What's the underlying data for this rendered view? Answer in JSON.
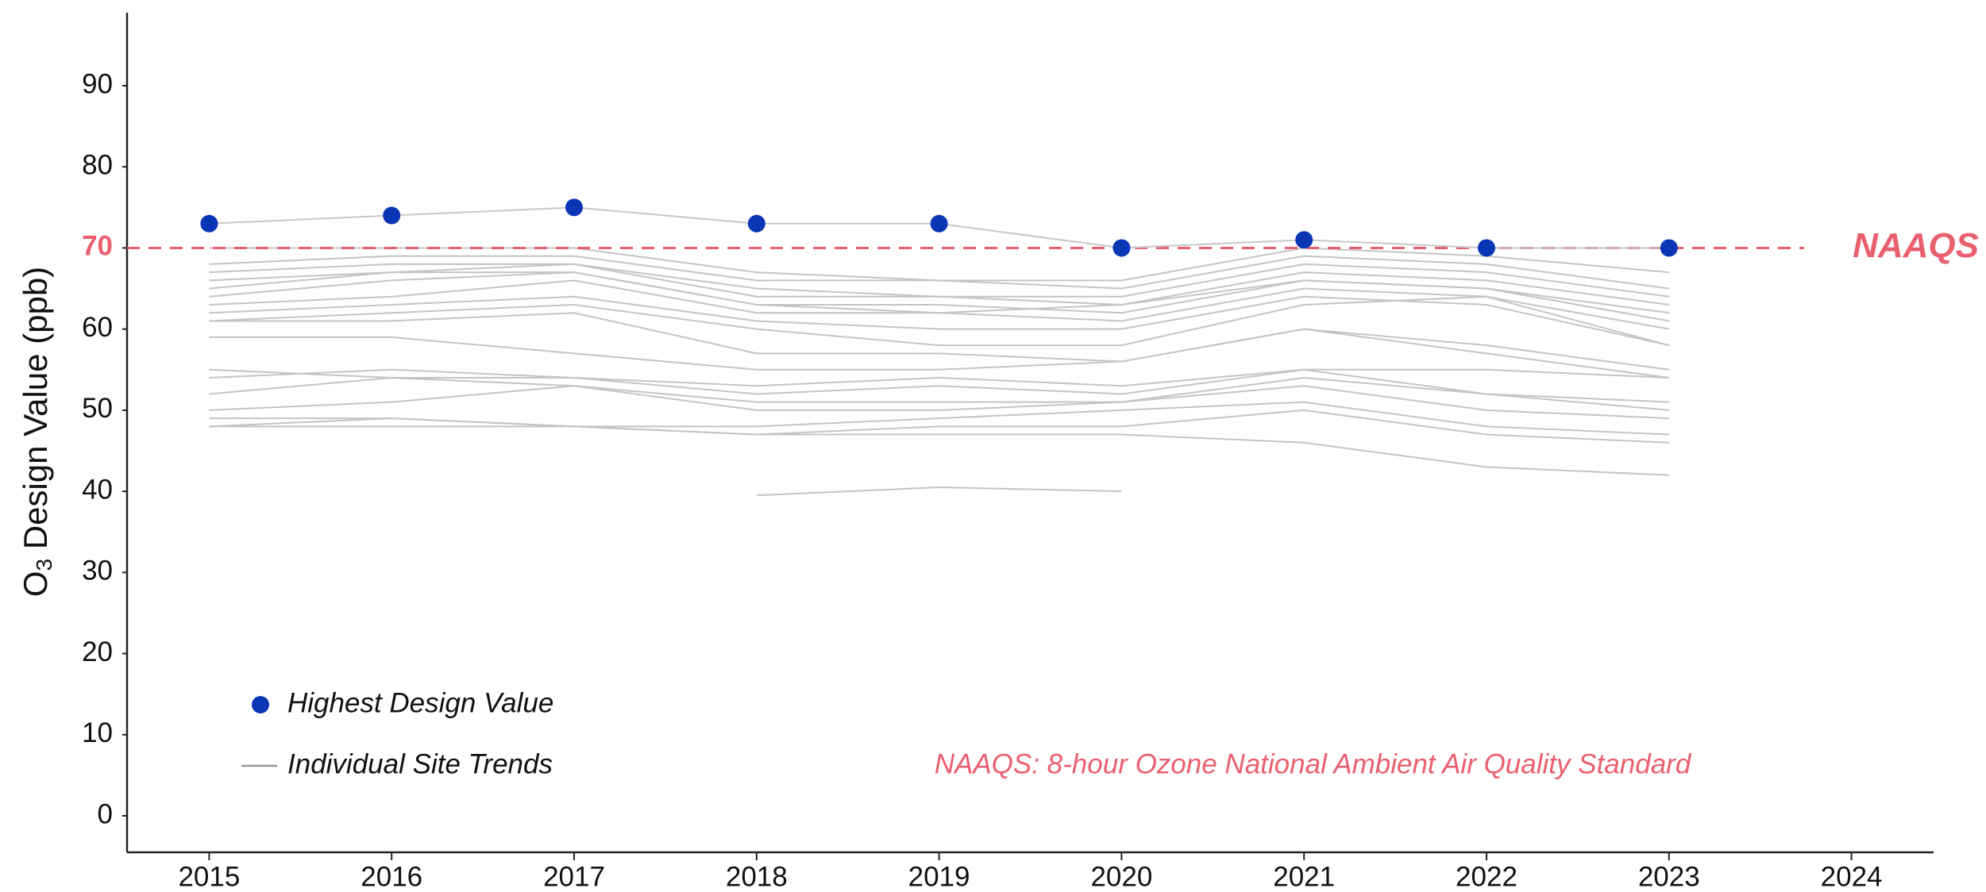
{
  "chart_data": {
    "type": "line",
    "ylabel": {
      "main": "O",
      "sub": "3",
      "rest": " Design Value (ppb)"
    },
    "x": [
      2015,
      2016,
      2017,
      2018,
      2019,
      2020,
      2021,
      2022,
      2023
    ],
    "xlim": [
      2014.55,
      2024.45
    ],
    "xticks": [
      2015,
      2016,
      2017,
      2018,
      2019,
      2020,
      2021,
      2022,
      2023,
      2024
    ],
    "ylim": [
      -4.5,
      99
    ],
    "yticks": [
      0,
      10,
      20,
      30,
      40,
      50,
      60,
      70,
      80,
      90
    ],
    "grid": false,
    "legend": "bottom-left",
    "series": [
      {
        "name": "Highest Design Value",
        "color": "#0a35b5",
        "line_color": "#c8c8c8",
        "values": [
          73,
          74,
          75,
          73,
          73,
          70,
          71,
          70,
          70
        ]
      }
    ],
    "site_trends": {
      "name": "Individual Site Trends",
      "color": "#c4c4c4",
      "lines": [
        [
          70,
          70,
          70,
          67,
          66,
          66,
          70,
          69,
          67
        ],
        [
          68,
          69,
          69,
          66,
          66,
          65,
          69,
          68,
          65
        ],
        [
          67,
          68,
          68,
          65,
          64,
          64,
          68,
          67,
          64
        ],
        [
          66,
          67,
          68,
          64,
          64,
          63,
          67,
          66,
          63
        ],
        [
          65,
          67,
          67,
          63,
          63,
          62,
          66,
          65,
          62
        ],
        [
          64,
          66,
          67,
          63,
          62,
          63,
          66,
          65,
          61
        ],
        [
          63,
          64,
          66,
          62,
          62,
          61,
          65,
          64,
          60
        ],
        [
          62,
          63,
          64,
          61,
          60,
          60,
          64,
          63,
          58
        ],
        [
          61,
          62,
          63,
          60,
          58,
          58,
          63,
          64,
          58
        ],
        [
          61,
          61,
          62,
          57,
          57,
          56,
          60,
          58,
          55
        ],
        [
          59,
          59,
          57,
          55,
          55,
          56,
          60,
          57,
          54
        ],
        [
          55,
          54,
          54,
          53,
          54,
          53,
          55,
          55,
          54
        ],
        [
          54,
          55,
          54,
          52,
          53,
          52,
          55,
          52,
          51
        ],
        [
          52,
          54,
          53,
          51,
          51,
          51,
          54,
          52,
          50
        ],
        [
          50,
          51,
          53,
          50,
          50,
          51,
          53,
          50,
          49
        ],
        [
          49,
          49,
          48,
          48,
          49,
          50,
          51,
          48,
          47
        ],
        [
          48,
          49,
          48,
          47,
          48,
          48,
          50,
          47,
          46
        ],
        [
          48,
          48,
          48,
          47,
          47,
          47,
          46,
          43,
          42
        ],
        [
          null,
          null,
          null,
          39.5,
          40.5,
          40,
          null,
          null,
          null
        ]
      ]
    },
    "standard": {
      "value": 70,
      "label": "NAAQS",
      "color": "#e8606e"
    },
    "note": "NAAQS: 8-hour Ozone National Ambient Air Quality Standard"
  }
}
